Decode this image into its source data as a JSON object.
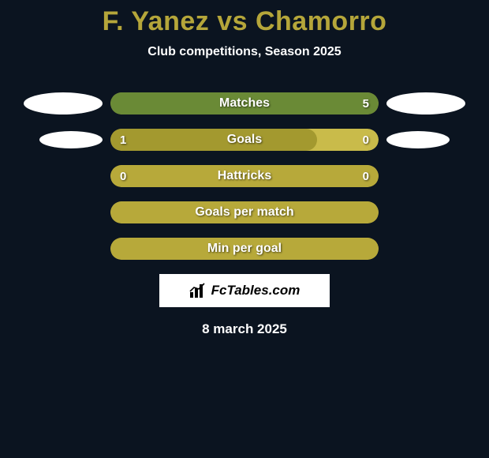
{
  "title_color": "#b5a63a",
  "background_color": "#0b1420",
  "title": "F. Yanez vs Chamorro",
  "subtitle": "Club competitions, Season 2025",
  "bar_colors": {
    "track": "#b7a93a",
    "fill_green": "#6a8a36",
    "fill_olive": "#a3992f"
  },
  "bars": [
    {
      "label": "Matches",
      "left_value": "",
      "right_value": "5",
      "fill_pct": 100,
      "fill_color": "#6a8a36",
      "track_color": "#b7a93a",
      "show_left_ellipse": true,
      "show_right_ellipse": true,
      "ellipse_left_style": "solid",
      "ellipse_right_style": "solid"
    },
    {
      "label": "Goals",
      "left_value": "1",
      "right_value": "0",
      "fill_pct": 77,
      "fill_color": "#a3992f",
      "track_color": "#c9bb4a",
      "show_left_ellipse": true,
      "show_right_ellipse": true,
      "ellipse_left_style": "small",
      "ellipse_right_style": "small"
    },
    {
      "label": "Hattricks",
      "left_value": "0",
      "right_value": "0",
      "fill_pct": 100,
      "fill_color": "#b7a93a",
      "track_color": "#b7a93a",
      "show_left_ellipse": false,
      "show_right_ellipse": false
    },
    {
      "label": "Goals per match",
      "left_value": "",
      "right_value": "",
      "fill_pct": 100,
      "fill_color": "#b7a93a",
      "track_color": "#b7a93a",
      "show_left_ellipse": false,
      "show_right_ellipse": false
    },
    {
      "label": "Min per goal",
      "left_value": "",
      "right_value": "",
      "fill_pct": 100,
      "fill_color": "#b7a93a",
      "track_color": "#b7a93a",
      "show_left_ellipse": false,
      "show_right_ellipse": false
    }
  ],
  "logo_text": "FcTables.com",
  "date": "8 march 2025",
  "ellipse_small": {
    "width": 80,
    "height": 22
  }
}
